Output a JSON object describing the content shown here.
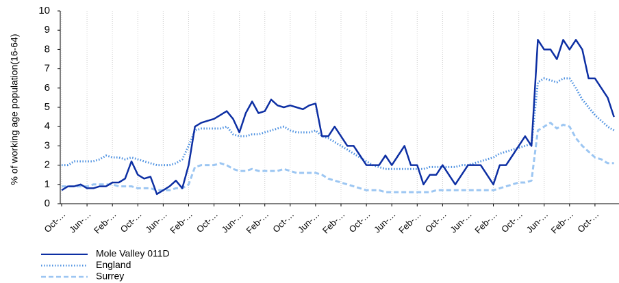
{
  "chart_data": {
    "type": "line",
    "ylabel": "% of working age population(16-64)",
    "categories": [
      "Oct-…",
      null,
      null,
      null,
      "Jun-…",
      null,
      null,
      null,
      "Feb-…",
      null,
      null,
      null,
      "Oct-…",
      null,
      null,
      null,
      "Jun-…",
      null,
      null,
      null,
      "Feb-…",
      null,
      null,
      null,
      "Oct-…",
      null,
      null,
      null,
      "Jun-…",
      null,
      null,
      null,
      "Feb-…",
      null,
      null,
      null,
      "Oct-…",
      null,
      null,
      null,
      "Jun-…",
      null,
      null,
      null,
      "Feb-…",
      null,
      null,
      null,
      "Oct-…",
      null,
      null,
      null,
      "Jun-…",
      null,
      null,
      null,
      "Feb-…",
      null,
      null,
      null,
      "Oct-…",
      null,
      null,
      null,
      "Jun-…",
      null,
      null,
      null,
      "Feb-…",
      null,
      null,
      null,
      "Oct-…",
      null,
      null,
      null,
      "Jun-…",
      null,
      null,
      null,
      "Feb-…",
      null,
      null,
      null,
      "Oct-…",
      null,
      null,
      null
    ],
    "series": [
      {
        "name": "Mole Valley 011D",
        "color": "#0d2fa3",
        "style": "solid",
        "values": [
          0.7,
          0.9,
          0.9,
          1.0,
          0.8,
          0.8,
          0.9,
          0.9,
          1.1,
          1.1,
          1.3,
          2.2,
          1.5,
          1.3,
          1.4,
          0.5,
          0.7,
          0.9,
          1.2,
          0.8,
          2.0,
          4.0,
          4.2,
          4.3,
          4.4,
          4.6,
          4.8,
          4.4,
          3.7,
          4.7,
          5.3,
          4.7,
          4.8,
          5.4,
          5.1,
          5.0,
          5.1,
          5.0,
          4.9,
          5.1,
          5.2,
          3.5,
          3.5,
          4.0,
          3.5,
          3.0,
          3.0,
          2.5,
          2.0,
          2.0,
          2.0,
          2.5,
          2.0,
          2.5,
          3.0,
          2.0,
          2.0,
          1.0,
          1.5,
          1.5,
          2.0,
          1.5,
          1.0,
          1.5,
          2.0,
          2.0,
          2.0,
          1.5,
          1.0,
          2.0,
          2.0,
          2.5,
          3.0,
          3.5,
          3.0,
          8.5,
          8.0,
          8.0,
          7.5,
          8.5,
          8.0,
          8.5,
          8.0,
          6.5,
          6.5,
          6.0,
          5.5,
          4.5
        ]
      },
      {
        "name": "England",
        "color": "#4a8fe0",
        "style": "dotted",
        "values": [
          2.0,
          2.0,
          2.2,
          2.2,
          2.2,
          2.2,
          2.3,
          2.5,
          2.4,
          2.4,
          2.3,
          2.4,
          2.3,
          2.2,
          2.1,
          2.0,
          2.0,
          2.0,
          2.1,
          2.3,
          3.0,
          3.8,
          3.9,
          3.9,
          3.9,
          3.9,
          4.0,
          3.6,
          3.5,
          3.5,
          3.6,
          3.6,
          3.7,
          3.8,
          3.9,
          4.0,
          3.8,
          3.7,
          3.7,
          3.7,
          3.8,
          3.5,
          3.4,
          3.2,
          3.0,
          2.8,
          2.6,
          2.4,
          2.2,
          2.0,
          1.9,
          1.8,
          1.8,
          1.8,
          1.8,
          1.8,
          1.8,
          1.8,
          1.9,
          1.9,
          1.9,
          1.9,
          1.9,
          2.0,
          2.0,
          2.1,
          2.2,
          2.3,
          2.4,
          2.6,
          2.7,
          2.8,
          2.9,
          3.0,
          3.1,
          6.3,
          6.5,
          6.4,
          6.3,
          6.5,
          6.5,
          6.0,
          5.4,
          5.0,
          4.6,
          4.3,
          4.0,
          3.8
        ]
      },
      {
        "name": "Surrey",
        "color": "#9cc6f2",
        "style": "dashed",
        "values": [
          0.9,
          0.9,
          0.9,
          0.9,
          0.9,
          1.0,
          1.0,
          1.0,
          1.0,
          0.9,
          0.9,
          0.9,
          0.8,
          0.8,
          0.8,
          0.7,
          0.7,
          0.7,
          0.8,
          0.8,
          1.0,
          1.9,
          2.0,
          2.0,
          2.0,
          2.1,
          2.0,
          1.8,
          1.7,
          1.7,
          1.8,
          1.7,
          1.7,
          1.7,
          1.7,
          1.8,
          1.7,
          1.6,
          1.6,
          1.6,
          1.6,
          1.5,
          1.3,
          1.2,
          1.1,
          1.0,
          0.9,
          0.8,
          0.7,
          0.7,
          0.7,
          0.6,
          0.6,
          0.6,
          0.6,
          0.6,
          0.6,
          0.6,
          0.6,
          0.7,
          0.7,
          0.7,
          0.7,
          0.7,
          0.7,
          0.7,
          0.7,
          0.7,
          0.7,
          0.8,
          0.9,
          1.0,
          1.1,
          1.1,
          1.2,
          3.8,
          4.0,
          4.2,
          3.9,
          4.1,
          4.0,
          3.4,
          3.0,
          2.7,
          2.4,
          2.3,
          2.1,
          2.1
        ]
      }
    ],
    "ylim": [
      0,
      10
    ],
    "yticks": [
      0,
      1,
      2,
      3,
      4,
      5,
      6,
      7,
      8,
      9,
      10
    ],
    "grid": true
  }
}
